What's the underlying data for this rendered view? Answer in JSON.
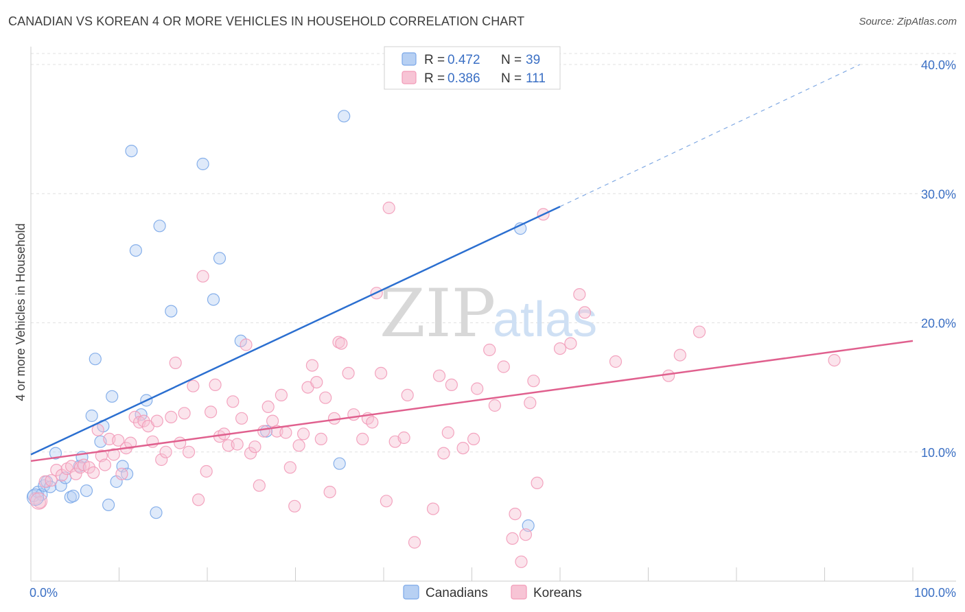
{
  "title": "CANADIAN VS KOREAN 4 OR MORE VEHICLES IN HOUSEHOLD CORRELATION CHART",
  "source": "Source: ZipAtlas.com",
  "watermark": {
    "zip": "ZIP",
    "atlas": "atlas"
  },
  "chart_data": {
    "type": "scatter",
    "title": "CANADIAN VS KOREAN 4 OR MORE VEHICLES IN HOUSEHOLD CORRELATION CHART",
    "xlabel": "",
    "ylabel": "4 or more Vehicles in Household",
    "xlim": [
      0,
      100
    ],
    "ylim": [
      0,
      40
    ],
    "x_tick_labels": [
      "0.0%",
      "100.0%"
    ],
    "y_ticks": [
      10,
      20,
      30,
      40
    ],
    "y_tick_labels": [
      "10.0%",
      "20.0%",
      "30.0%",
      "40.0%"
    ],
    "grid": true,
    "legend_position": "top-center",
    "series": [
      {
        "name": "Canadians",
        "color": "#7aa7e8",
        "fill": "#b7d0f3",
        "line_color": "#2b6fd0",
        "R": "0.472",
        "N": "39",
        "trend": {
          "x0": 0,
          "y0": 9.8,
          "x1": 60,
          "y1": 29.0,
          "dash_to_x": 94,
          "dash_to_y": 40.0
        },
        "points": [
          [
            0.3,
            6.6
          ],
          [
            0.8,
            6.9
          ],
          [
            1.2,
            6.7
          ],
          [
            1.5,
            7.4
          ],
          [
            1.8,
            7.7
          ],
          [
            2.2,
            7.3
          ],
          [
            2.8,
            9.9
          ],
          [
            3.4,
            7.4
          ],
          [
            3.9,
            8.0
          ],
          [
            4.5,
            6.5
          ],
          [
            4.8,
            6.6
          ],
          [
            5.5,
            8.9
          ],
          [
            5.8,
            9.6
          ],
          [
            6.3,
            7.0
          ],
          [
            6.9,
            12.8
          ],
          [
            7.3,
            17.2
          ],
          [
            7.9,
            10.8
          ],
          [
            8.2,
            12.0
          ],
          [
            8.8,
            5.9
          ],
          [
            9.2,
            14.3
          ],
          [
            9.7,
            7.7
          ],
          [
            10.4,
            8.9
          ],
          [
            10.9,
            8.3
          ],
          [
            11.4,
            33.3
          ],
          [
            11.9,
            25.6
          ],
          [
            12.5,
            12.9
          ],
          [
            13.1,
            14.0
          ],
          [
            14.2,
            5.3
          ],
          [
            14.6,
            27.5
          ],
          [
            15.9,
            20.9
          ],
          [
            19.5,
            32.3
          ],
          [
            20.7,
            21.8
          ],
          [
            21.4,
            25.0
          ],
          [
            23.8,
            18.6
          ],
          [
            26.7,
            11.6
          ],
          [
            35.0,
            9.1
          ],
          [
            35.5,
            36.0
          ],
          [
            55.5,
            27.3
          ],
          [
            56.4,
            4.3
          ]
        ]
      },
      {
        "name": "Koreans",
        "color": "#f29ab8",
        "fill": "#f7c4d5",
        "line_color": "#e0608e",
        "R": "0.386",
        "N": "111",
        "trend": {
          "x0": 0,
          "y0": 9.3,
          "x1": 100,
          "y1": 18.6
        },
        "points": [
          [
            0.5,
            6.4
          ],
          [
            1.0,
            6.1
          ],
          [
            1.6,
            7.7
          ],
          [
            2.3,
            7.8
          ],
          [
            2.9,
            8.6
          ],
          [
            3.5,
            8.2
          ],
          [
            4.1,
            8.7
          ],
          [
            4.6,
            8.9
          ],
          [
            5.1,
            8.3
          ],
          [
            5.6,
            8.8
          ],
          [
            6.0,
            9.0
          ],
          [
            6.6,
            8.8
          ],
          [
            7.1,
            8.4
          ],
          [
            7.6,
            11.7
          ],
          [
            8.0,
            9.7
          ],
          [
            8.4,
            9.0
          ],
          [
            8.9,
            11.0
          ],
          [
            9.4,
            9.8
          ],
          [
            9.9,
            10.9
          ],
          [
            10.3,
            8.3
          ],
          [
            10.8,
            10.3
          ],
          [
            11.3,
            10.7
          ],
          [
            11.8,
            12.7
          ],
          [
            12.3,
            12.3
          ],
          [
            12.8,
            12.4
          ],
          [
            13.3,
            12.0
          ],
          [
            13.8,
            10.8
          ],
          [
            14.3,
            12.4
          ],
          [
            14.8,
            9.4
          ],
          [
            15.3,
            10.0
          ],
          [
            15.9,
            12.7
          ],
          [
            16.4,
            16.9
          ],
          [
            16.9,
            10.7
          ],
          [
            17.4,
            13.0
          ],
          [
            17.9,
            10.0
          ],
          [
            18.4,
            15.1
          ],
          [
            19.0,
            6.3
          ],
          [
            19.5,
            23.6
          ],
          [
            19.9,
            8.5
          ],
          [
            20.4,
            13.1
          ],
          [
            20.9,
            15.2
          ],
          [
            21.4,
            11.2
          ],
          [
            21.9,
            11.4
          ],
          [
            22.4,
            10.5
          ],
          [
            22.9,
            13.9
          ],
          [
            23.4,
            10.6
          ],
          [
            23.9,
            12.6
          ],
          [
            24.4,
            18.3
          ],
          [
            24.9,
            9.9
          ],
          [
            25.4,
            10.4
          ],
          [
            25.9,
            7.4
          ],
          [
            26.4,
            11.6
          ],
          [
            26.9,
            13.5
          ],
          [
            27.4,
            12.4
          ],
          [
            27.9,
            11.6
          ],
          [
            28.4,
            14.4
          ],
          [
            28.9,
            11.5
          ],
          [
            29.4,
            8.8
          ],
          [
            29.9,
            5.8
          ],
          [
            30.4,
            10.5
          ],
          [
            30.9,
            11.4
          ],
          [
            31.4,
            15.0
          ],
          [
            31.9,
            16.7
          ],
          [
            32.4,
            15.4
          ],
          [
            32.9,
            11.0
          ],
          [
            33.4,
            14.2
          ],
          [
            33.9,
            6.9
          ],
          [
            34.4,
            12.6
          ],
          [
            34.9,
            18.5
          ],
          [
            35.2,
            18.4
          ],
          [
            36.0,
            16.1
          ],
          [
            36.6,
            12.9
          ],
          [
            37.6,
            11.0
          ],
          [
            38.2,
            12.6
          ],
          [
            38.7,
            12.3
          ],
          [
            39.2,
            22.3
          ],
          [
            39.7,
            16.1
          ],
          [
            40.3,
            6.2
          ],
          [
            40.6,
            28.9
          ],
          [
            41.3,
            10.8
          ],
          [
            42.3,
            11.1
          ],
          [
            42.7,
            14.4
          ],
          [
            43.5,
            3.0
          ],
          [
            45.6,
            5.6
          ],
          [
            46.3,
            15.9
          ],
          [
            46.8,
            9.9
          ],
          [
            47.3,
            11.5
          ],
          [
            47.7,
            15.2
          ],
          [
            49.0,
            10.3
          ],
          [
            50.2,
            11.0
          ],
          [
            50.6,
            14.9
          ],
          [
            52.0,
            17.9
          ],
          [
            52.6,
            13.6
          ],
          [
            53.6,
            16.6
          ],
          [
            54.6,
            3.3
          ],
          [
            54.9,
            5.2
          ],
          [
            55.6,
            1.5
          ],
          [
            56.1,
            3.6
          ],
          [
            56.6,
            13.8
          ],
          [
            57.0,
            15.5
          ],
          [
            57.4,
            7.6
          ],
          [
            58.1,
            28.4
          ],
          [
            60.0,
            18.0
          ],
          [
            61.2,
            18.4
          ],
          [
            62.2,
            22.2
          ],
          [
            62.8,
            20.8
          ],
          [
            66.3,
            17.0
          ],
          [
            72.3,
            15.9
          ],
          [
            73.6,
            17.5
          ],
          [
            75.8,
            19.3
          ],
          [
            91.1,
            17.1
          ]
        ]
      }
    ]
  }
}
